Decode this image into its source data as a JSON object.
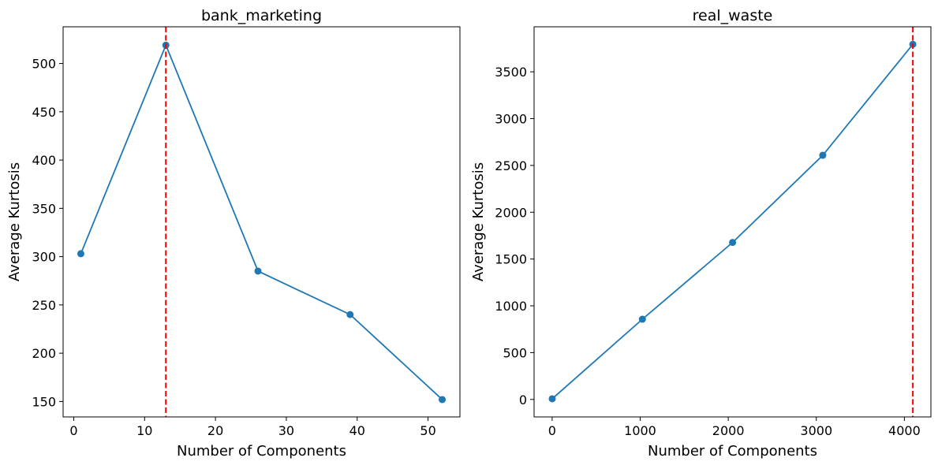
{
  "figure": {
    "background": "#ffffff"
  },
  "chart_data": [
    {
      "type": "line",
      "title": "bank_marketing",
      "xlabel": "Number of Components",
      "ylabel": "Average Kurtosis",
      "xlim": [
        -1.5,
        54.5
      ],
      "ylim": [
        134,
        538
      ],
      "xticks": [
        0,
        10,
        20,
        30,
        40,
        50
      ],
      "yticks": [
        150,
        200,
        250,
        300,
        350,
        400,
        450,
        500
      ],
      "grid": false,
      "series": [
        {
          "x": [
            1,
            13,
            26,
            39,
            52
          ],
          "y": [
            303,
            519,
            285,
            240,
            152
          ],
          "color": "#1f77b4",
          "marker": "circle"
        }
      ],
      "reference_lines": [
        {
          "orientation": "vertical",
          "x": 13,
          "color": "#ff0000",
          "style": "dashed"
        }
      ]
    },
    {
      "type": "line",
      "title": "real_waste",
      "xlabel": "Number of Components",
      "ylabel": "Average Kurtosis",
      "xlim": [
        -205,
        4301
      ],
      "ylim": [
        -187,
        3981
      ],
      "xticks": [
        0,
        1000,
        2000,
        3000,
        4000
      ],
      "yticks": [
        0,
        500,
        1000,
        1500,
        2000,
        2500,
        3000,
        3500
      ],
      "grid": false,
      "series": [
        {
          "x": [
            1,
            1025,
            2049,
            3073,
            4096
          ],
          "y": [
            7,
            857,
            1677,
            2608,
            3794
          ],
          "color": "#1f77b4",
          "marker": "circle"
        }
      ],
      "reference_lines": [
        {
          "orientation": "vertical",
          "x": 4096,
          "color": "#ff0000",
          "style": "dashed"
        }
      ]
    }
  ]
}
